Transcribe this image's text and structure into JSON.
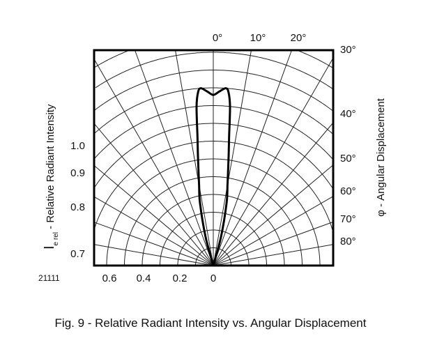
{
  "chart_data": {
    "type": "polar-line",
    "figure_id": "21111",
    "caption": "Fig. 9 - Relative Radiant Intensity vs. Angular Displacement",
    "ylabel_main": "I",
    "ylabel_sub": "e rel",
    "ylabel_rest": " - Relative Radiant Intensity",
    "right_label": "φ - Angular Displacement",
    "angle_ticks_top": [
      "0°",
      "10°",
      "20°"
    ],
    "angle_ticks_right": [
      "30°",
      "40°",
      "50°",
      "60°",
      "70°",
      "80°"
    ],
    "intensity_ticks_left": [
      "1.0",
      "0.9",
      "0.8",
      "0.7"
    ],
    "intensity_ticks_bottom": [
      "0.6",
      "0.4",
      "0.2",
      "0"
    ],
    "grid": true,
    "angle_grid_step_deg": 10,
    "intensity_grid_step": 0.1,
    "series": [
      {
        "angle_deg": [
          0,
          2,
          4,
          5,
          6,
          7,
          8,
          9,
          10,
          12,
          15,
          20
        ],
        "intensity": [
          0.96,
          0.98,
          1.0,
          0.98,
          0.9,
          0.73,
          0.62,
          0.53,
          0.46,
          0.36,
          0.17,
          0
        ],
        "symmetric": true,
        "color": "#000000"
      }
    ]
  }
}
